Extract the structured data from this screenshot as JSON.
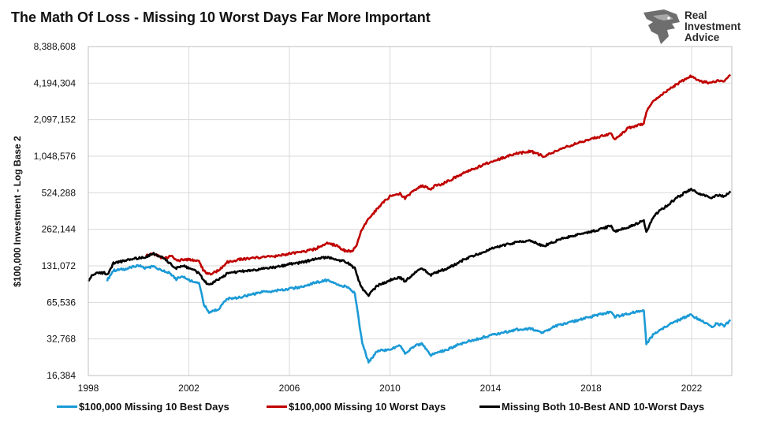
{
  "title": "The Math Of Loss - Missing 10 Worst Days Far More Important",
  "logo": {
    "line1": "Real",
    "line2": "Investment",
    "line3": "Advice"
  },
  "chart_data": {
    "type": "line",
    "title": "The Math Of Loss - Missing 10 Worst Days Far More Important",
    "ylabel": "$100,000 Investment - Log Base 2",
    "xlabel": "",
    "y_scale": "log2",
    "ylim": [
      16384,
      8388608
    ],
    "xlim": [
      1998,
      2023.6
    ],
    "y_ticks": [
      16384,
      32768,
      65536,
      131072,
      262144,
      524288,
      1048576,
      2097152,
      4194304,
      8388608
    ],
    "y_tick_labels": [
      "16,384",
      "32,768",
      "65,536",
      "131,072",
      "262,144",
      "524,288",
      "1,048,576",
      "2,097,152",
      "4,194,304",
      "8,388,608"
    ],
    "x_ticks": [
      1998,
      2002,
      2006,
      2010,
      2014,
      2018,
      2022
    ],
    "x_tick_labels": [
      "1998",
      "2002",
      "2006",
      "2010",
      "2014",
      "2018",
      "2022"
    ],
    "grid": true,
    "legend_position": "bottom",
    "series": [
      {
        "name": "$100,000 Missing 10 Best Days",
        "color": "#1b9ad6",
        "x": [
          1998.75,
          1999.0,
          1999.5,
          2000.0,
          2000.25,
          2000.6,
          2000.9,
          2001.2,
          2001.5,
          2001.75,
          2002.0,
          2002.4,
          2002.6,
          2002.8,
          2003.2,
          2003.5,
          2004.0,
          2004.5,
          2005.0,
          2005.5,
          2006.0,
          2006.5,
          2007.0,
          2007.5,
          2007.8,
          2008.3,
          2008.6,
          2008.75,
          2008.9,
          2009.15,
          2009.5,
          2010.0,
          2010.4,
          2010.6,
          2011.0,
          2011.3,
          2011.6,
          2011.8,
          2012.3,
          2013.0,
          2014.0,
          2015.0,
          2015.6,
          2016.1,
          2016.6,
          2017.0,
          2018.0,
          2018.8,
          2018.95,
          2019.5,
          2020.1,
          2020.2,
          2020.5,
          2021.0,
          2021.5,
          2021.95,
          2022.4,
          2022.8,
          2023.0,
          2023.3,
          2023.55
        ],
        "values": [
          100000,
          120000,
          124000,
          132000,
          126000,
          130000,
          120000,
          115000,
          102000,
          108000,
          100000,
          95000,
          63000,
          54000,
          58000,
          70000,
          72000,
          76000,
          80000,
          82000,
          85000,
          88000,
          95000,
          100000,
          95000,
          87000,
          78000,
          48000,
          30000,
          21000,
          26000,
          27000,
          29000,
          25000,
          29000,
          30000,
          24000,
          25000,
          27000,
          31000,
          35000,
          39000,
          40000,
          37000,
          42000,
          44000,
          50000,
          55000,
          50000,
          53000,
          57000,
          30000,
          36000,
          42000,
          47000,
          52000,
          46000,
          41000,
          44000,
          42000,
          47000
        ]
      },
      {
        "name": "$100,000 Missing 10 Worst Days",
        "color": "#c00000",
        "x": [
          2000.3,
          2000.6,
          2001.0,
          2001.3,
          2001.5,
          2002.0,
          2002.4,
          2002.6,
          2002.8,
          2003.2,
          2003.5,
          2004.0,
          2004.5,
          2005.0,
          2005.5,
          2006.0,
          2006.5,
          2007.0,
          2007.5,
          2007.8,
          2008.2,
          2008.5,
          2008.7,
          2008.85,
          2009.0,
          2009.5,
          2010.0,
          2010.4,
          2010.6,
          2011.0,
          2011.3,
          2011.6,
          2011.8,
          2012.0,
          2013.0,
          2014.0,
          2015.0,
          2015.6,
          2016.1,
          2016.6,
          2017.0,
          2018.0,
          2018.8,
          2018.95,
          2019.5,
          2020.1,
          2020.2,
          2020.5,
          2021.0,
          2021.5,
          2021.95,
          2022.4,
          2022.8,
          2023.0,
          2023.3,
          2023.55
        ],
        "values": [
          160000,
          165000,
          150000,
          158000,
          145000,
          148000,
          142000,
          118000,
          112000,
          120000,
          140000,
          148000,
          152000,
          155000,
          158000,
          165000,
          170000,
          180000,
          200000,
          195000,
          175000,
          172000,
          200000,
          250000,
          290000,
          390000,
          490000,
          520000,
          470000,
          560000,
          600000,
          560000,
          600000,
          610000,
          770000,
          940000,
          1100000,
          1150000,
          1050000,
          1150000,
          1250000,
          1450000,
          1620000,
          1450000,
          1800000,
          1950000,
          2450000,
          3000000,
          3600000,
          4200000,
          4800000,
          4300000,
          4200000,
          4400000,
          4300000,
          4900000
        ]
      },
      {
        "name": "Missing Both 10-Best AND 10-Worst Days",
        "color": "#000000",
        "x": [
          1998.0,
          1998.2,
          1998.6,
          1998.8,
          1999.0,
          1999.5,
          2000.0,
          2000.25,
          2000.6,
          2000.9,
          2001.2,
          2001.5,
          2001.75,
          2002.0,
          2002.4,
          2002.6,
          2002.8,
          2003.2,
          2003.5,
          2004.0,
          2004.5,
          2005.0,
          2005.5,
          2006.0,
          2006.5,
          2007.0,
          2007.5,
          2007.8,
          2008.3,
          2008.6,
          2008.75,
          2008.9,
          2009.15,
          2009.5,
          2010.0,
          2010.4,
          2010.6,
          2011.0,
          2011.3,
          2011.6,
          2011.8,
          2012.3,
          2013.0,
          2014.0,
          2015.0,
          2015.6,
          2016.1,
          2016.6,
          2017.0,
          2018.0,
          2018.8,
          2018.95,
          2019.5,
          2020.1,
          2020.2,
          2020.5,
          2021.0,
          2021.5,
          2021.95,
          2022.4,
          2022.8,
          2023.0,
          2023.3,
          2023.55
        ],
        "values": [
          100000,
          112000,
          115000,
          112000,
          138000,
          145000,
          152000,
          155000,
          165000,
          155000,
          140000,
          125000,
          132000,
          125000,
          115000,
          98000,
          92000,
          102000,
          112000,
          118000,
          120000,
          125000,
          128000,
          135000,
          140000,
          148000,
          155000,
          150000,
          140000,
          125000,
          100000,
          85000,
          75000,
          90000,
          100000,
          105000,
          98000,
          115000,
          125000,
          110000,
          115000,
          125000,
          150000,
          180000,
          205000,
          210000,
          190000,
          210000,
          225000,
          250000,
          280000,
          250000,
          275000,
          310000,
          250000,
          340000,
          410000,
          490000,
          560000,
          510000,
          470000,
          500000,
          490000,
          540000
        ]
      }
    ]
  }
}
